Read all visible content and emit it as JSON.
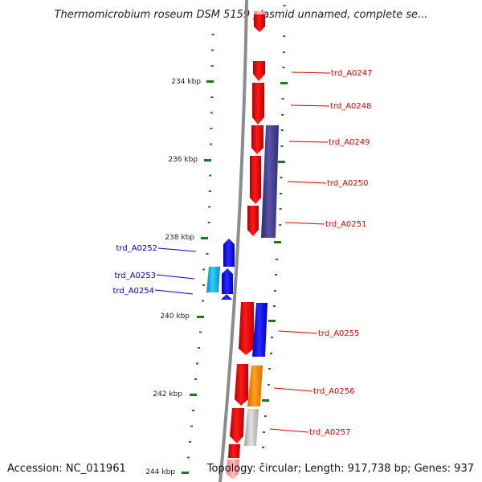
{
  "title": "Thermomicrobium roseum DSM 5159 plasmid unnamed, complete se...",
  "footer": {
    "accession": "Accession: NC_011961",
    "topology": "Topology: circular; Length: 917,738 bp; Genes: 937"
  },
  "colors": {
    "backbone": "#909090",
    "tick": "#1a7a1a",
    "forward_gene": "#ee0000",
    "reverse_gene": "#1010ee",
    "right_label": "#d40000",
    "left_label": "#0000cc"
  },
  "kbp_labels": [
    "234 kbp",
    "236 kbp",
    "238 kbp",
    "240 kbp",
    "242 kbp",
    "244 kbp"
  ],
  "gene_labels_right": [
    "trd_A0247",
    "trd_A0248",
    "trd_A0249",
    "trd_A0250",
    "trd_A0251",
    "trd_A0255",
    "trd_A0256",
    "trd_A0257"
  ],
  "gene_labels_left": [
    "trd_A0252",
    "trd_A0253",
    "trd_A0254"
  ]
}
